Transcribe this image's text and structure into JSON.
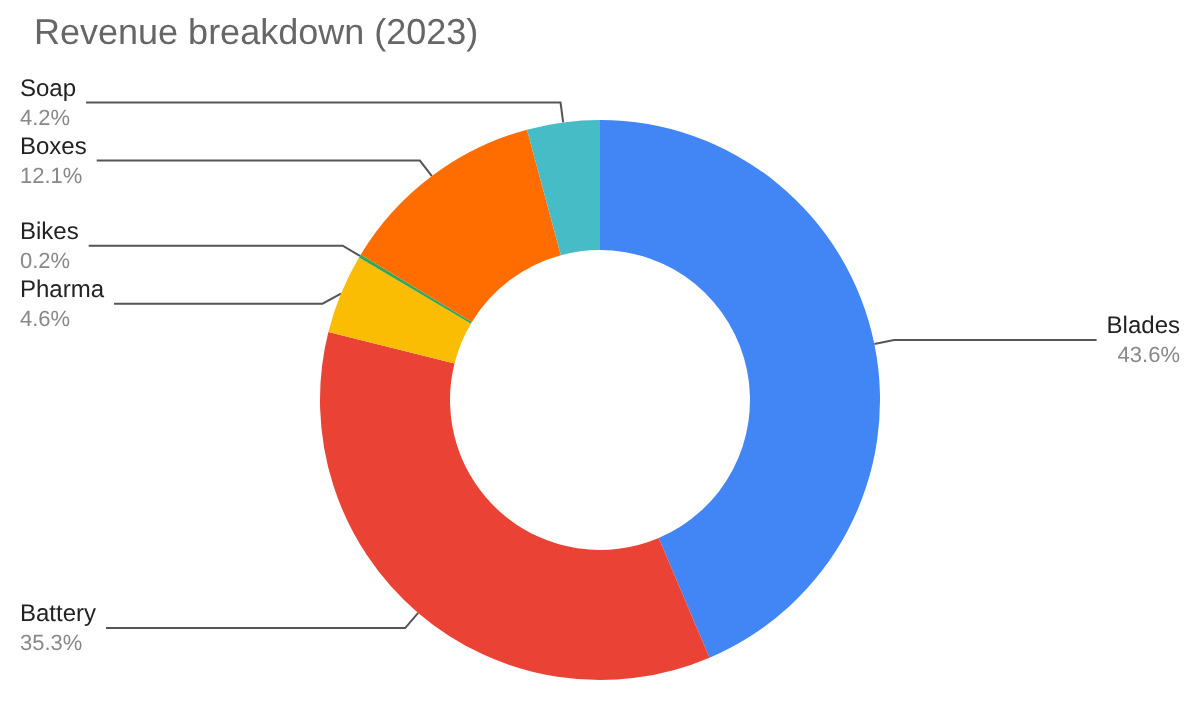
{
  "chart_data": {
    "type": "donut",
    "title": "Revenue breakdown (2023)",
    "categories": [
      "Blades",
      "Battery",
      "Pharma",
      "Bikes",
      "Boxes",
      "Soap"
    ],
    "values": [
      43.6,
      35.3,
      4.6,
      0.2,
      12.1,
      4.2
    ],
    "colors": [
      "#4285f4",
      "#ea4335",
      "#fbbc04",
      "#34a853",
      "#ff6d01",
      "#46bdc6"
    ],
    "value_labels": [
      "43.6%",
      "35.3%",
      "4.6%",
      "0.2%",
      "12.1%",
      "4.2%"
    ],
    "legend": false
  }
}
